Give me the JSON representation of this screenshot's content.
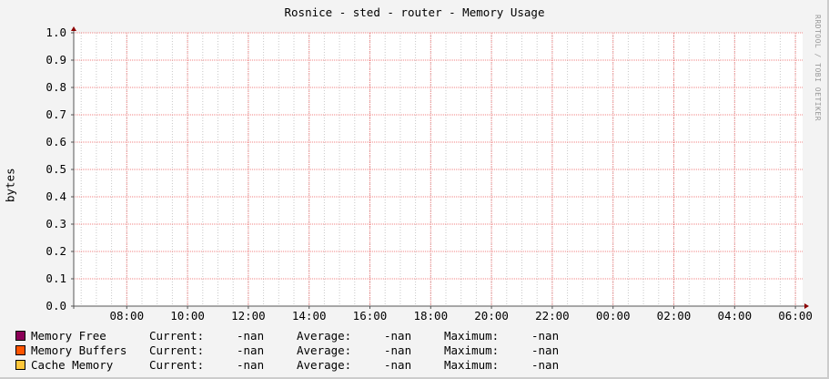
{
  "title": "Rosnice - sted - router - Memory Usage",
  "watermark": "RRDTOOL / TOBI OETIKER",
  "colors": {
    "background": "#f3f3f3",
    "canvas": "#ffffff",
    "major_grid": "#f08080",
    "minor_grid": "#c8c8c8",
    "axis": "#555555",
    "arrow": "#8b0000"
  },
  "chart_data": {
    "type": "area",
    "title": "Rosnice - sted - router - Memory Usage",
    "ylabel": "bytes",
    "xlabel": "",
    "ylim": [
      0,
      1.0
    ],
    "y_ticks": [
      "0.0",
      "0.1",
      "0.2",
      "0.3",
      "0.4",
      "0.5",
      "0.6",
      "0.7",
      "0.8",
      "0.9",
      "1.0"
    ],
    "x_ticks": [
      "08:00",
      "10:00",
      "12:00",
      "14:00",
      "16:00",
      "18:00",
      "20:00",
      "22:00",
      "00:00",
      "02:00",
      "04:00",
      "06:00"
    ],
    "grid": true,
    "legend_position": "bottom",
    "series": [
      {
        "name": "Memory Free",
        "color": "#8b0057",
        "values": []
      },
      {
        "name": "Memory Buffers",
        "color": "#ff5500",
        "values": []
      },
      {
        "name": "Cache Memory",
        "color": "#ffc73b",
        "values": []
      }
    ]
  },
  "legend": [
    {
      "name": "Memory Free",
      "current_label": "Current:",
      "current": "-nan",
      "average_label": "Average:",
      "average": "-nan",
      "maximum_label": "Maximum:",
      "maximum": "-nan"
    },
    {
      "name": "Memory Buffers",
      "current_label": "Current:",
      "current": "-nan",
      "average_label": "Average:",
      "average": "-nan",
      "maximum_label": "Maximum:",
      "maximum": "-nan"
    },
    {
      "name": "Cache Memory",
      "current_label": "Current:",
      "current": "-nan",
      "average_label": "Average:",
      "average": "-nan",
      "maximum_label": "Maximum:",
      "maximum": "-nan"
    }
  ]
}
